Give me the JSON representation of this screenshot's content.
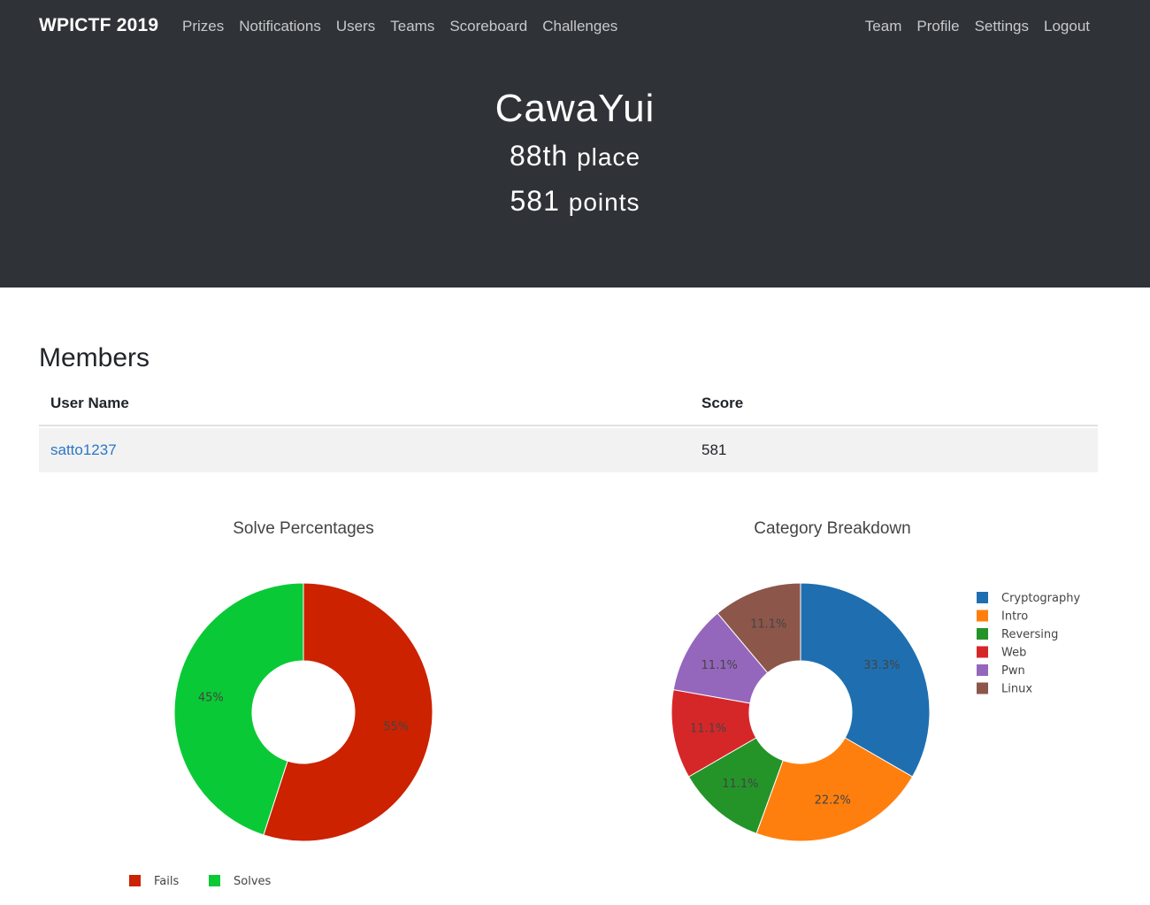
{
  "navbar": {
    "brand": "WPICTF 2019",
    "left_links": [
      "Prizes",
      "Notifications",
      "Users",
      "Teams",
      "Scoreboard",
      "Challenges"
    ],
    "right_links": [
      "Team",
      "Profile",
      "Settings",
      "Logout"
    ]
  },
  "team": {
    "name": "CawaYui",
    "place_number": "88th",
    "place_suffix": "place",
    "points_number": "581",
    "points_suffix": "points"
  },
  "members": {
    "title": "Members",
    "headers": [
      "User Name",
      "Score"
    ],
    "rows": [
      {
        "user": "satto1237",
        "score": "581"
      }
    ]
  },
  "chart_data": [
    {
      "type": "pie",
      "title": "Solve Percentages",
      "hole": true,
      "categories": [
        "Fails",
        "Solves"
      ],
      "values": [
        55,
        45
      ],
      "labels": [
        "55%",
        "45%"
      ],
      "colors": [
        "#cc2200",
        "#0ac936"
      ],
      "legend": "bottom"
    },
    {
      "type": "pie",
      "title": "Category Breakdown",
      "hole": true,
      "categories": [
        "Cryptography",
        "Intro",
        "Reversing",
        "Web",
        "Pwn",
        "Linux"
      ],
      "values": [
        33.3,
        22.2,
        11.1,
        11.1,
        11.1,
        11.1
      ],
      "labels": [
        "33.3%",
        "22.2%",
        "11.1%",
        "11.1%",
        "11.1%",
        "11.1%"
      ],
      "colors": [
        "#1f6fb0",
        "#ff7f0e",
        "#249429",
        "#d62728",
        "#9467bd",
        "#8c564b"
      ],
      "legend": "right"
    }
  ]
}
